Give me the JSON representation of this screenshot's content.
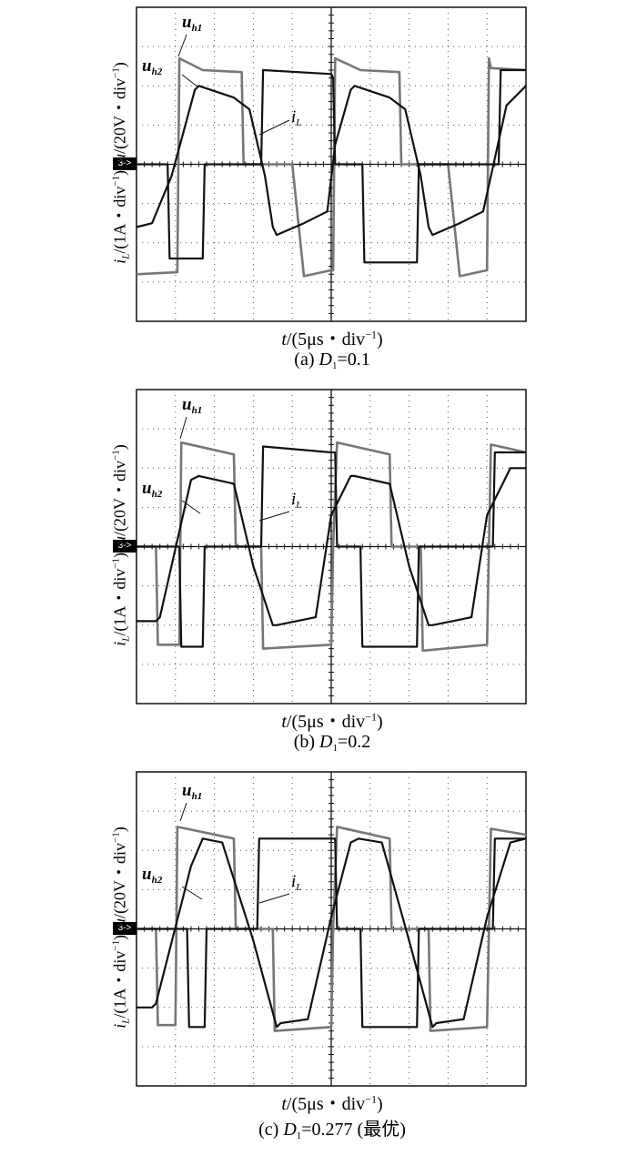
{
  "chart_data": [
    {
      "type": "line",
      "caption_prefix": "(a) ",
      "caption_var": "D",
      "caption_sub": "1",
      "caption_rest": "=0.1",
      "D1": 0.1,
      "xlabel": "t/(5μs・div⁻¹)",
      "ylabel": "iL/(1A・div⁻¹)   u/(20V・div⁻¹)",
      "marker": "3->",
      "series": [
        {
          "name": "uh1",
          "color": "#777777",
          "x": [
            0,
            1.05,
            1.1,
            1.7,
            2.7,
            2.75,
            2.8,
            4.0,
            4.3,
            5.0,
            5.05,
            5.1,
            5.75,
            6.75,
            6.8,
            6.9,
            8.0,
            8.3,
            9.0,
            9.05,
            9.1,
            10
          ],
          "y": [
            -2.8,
            -2.75,
            2.7,
            2.4,
            2.35,
            0,
            0,
            0,
            -2.85,
            -2.7,
            -2.7,
            2.7,
            2.4,
            2.35,
            0,
            0,
            0,
            -2.85,
            -2.7,
            2.7,
            2.45,
            2.4
          ]
        },
        {
          "name": "uh2",
          "color": "#111111",
          "x": [
            0,
            0.8,
            0.85,
            1.7,
            1.75,
            3.2,
            3.25,
            5.0,
            5.05,
            5.1,
            5.8,
            5.85,
            7.2,
            7.25,
            9.0,
            9.3,
            9.35,
            10
          ],
          "y": [
            0,
            0,
            -2.4,
            -2.4,
            0,
            0,
            2.4,
            2.3,
            2.2,
            0,
            0,
            -2.5,
            -2.5,
            0,
            0,
            0,
            2.4,
            2.4
          ]
        },
        {
          "name": "iL",
          "color": "#111111",
          "x": [
            0,
            0.4,
            0.9,
            1.5,
            1.6,
            2.5,
            2.9,
            3.3,
            3.5,
            3.6,
            4.3,
            4.9,
            5.1,
            5.5,
            5.6,
            6.5,
            6.9,
            7.3,
            7.5,
            7.6,
            8.3,
            8.9,
            9.5,
            10
          ],
          "y": [
            -1.6,
            -1.5,
            -0.3,
            1.9,
            2.0,
            1.7,
            1.4,
            -0.3,
            -1.6,
            -1.8,
            -1.5,
            -1.2,
            0.5,
            1.9,
            2.0,
            1.7,
            1.4,
            -0.3,
            -1.6,
            -1.8,
            -1.5,
            -1.2,
            1.5,
            2.0
          ]
        }
      ],
      "label_uh1": "u",
      "label_uh1_sub": "h1",
      "label_uh2": "u",
      "label_uh2_sub": "h2",
      "label_iL": "i",
      "label_iL_sub": "L"
    },
    {
      "type": "line",
      "caption_prefix": "(b) ",
      "caption_var": "D",
      "caption_sub": "1",
      "caption_rest": "=0.2",
      "D1": 0.2,
      "xlabel": "t/(5μs・div⁻¹)",
      "ylabel": "iL/(1A・div⁻¹)   u/(20V・div⁻¹)",
      "marker": "3->",
      "series": [
        {
          "name": "uh1",
          "color": "#777777",
          "x": [
            0,
            0.5,
            0.55,
            1.1,
            1.15,
            2.5,
            2.55,
            3.2,
            3.25,
            5.0,
            5.05,
            5.15,
            6.5,
            6.55,
            7.3,
            7.35,
            9.0,
            9.05,
            9.1,
            10
          ],
          "y": [
            0,
            0,
            -2.5,
            -2.5,
            2.65,
            2.35,
            0,
            0,
            -2.6,
            -2.5,
            0,
            2.65,
            2.35,
            0,
            0,
            -2.65,
            -2.5,
            0,
            2.6,
            2.4
          ]
        },
        {
          "name": "uh2",
          "color": "#111111",
          "x": [
            0,
            1.1,
            1.15,
            1.7,
            1.75,
            3.2,
            3.25,
            5.0,
            5.1,
            5.15,
            5.75,
            5.8,
            7.2,
            7.25,
            9.1,
            9.15,
            9.2,
            10
          ],
          "y": [
            0,
            0,
            -2.55,
            -2.55,
            0,
            0,
            2.55,
            2.4,
            2.4,
            0,
            0,
            -2.55,
            -2.55,
            0,
            0,
            0,
            2.4,
            2.4
          ]
        },
        {
          "name": "iL",
          "color": "#111111",
          "x": [
            0,
            0.5,
            0.6,
            1.4,
            1.6,
            2.5,
            3.0,
            3.5,
            3.6,
            4.6,
            5.0,
            5.5,
            5.6,
            6.5,
            7.0,
            7.5,
            7.6,
            8.6,
            9.0,
            9.6,
            10
          ],
          "y": [
            -1.9,
            -1.9,
            -1.8,
            1.7,
            1.8,
            1.6,
            -0.5,
            -2.0,
            -2.0,
            -1.8,
            0.8,
            1.8,
            1.8,
            1.6,
            -0.5,
            -2.0,
            -2.0,
            -1.8,
            0.8,
            2.0,
            2.0
          ]
        }
      ],
      "label_uh1": "u",
      "label_uh1_sub": "h1",
      "label_uh2": "u",
      "label_uh2_sub": "h2",
      "label_iL": "i",
      "label_iL_sub": "L"
    },
    {
      "type": "line",
      "caption_prefix": "(c) ",
      "caption_var": "D",
      "caption_sub": "1",
      "caption_rest": "=0.277 (最优)",
      "D1": 0.277,
      "xlabel": "t/(5μs・div⁻¹)",
      "ylabel": "iL/(1A・div⁻¹)   u/(20V・div⁻¹)",
      "marker": "3->",
      "series": [
        {
          "name": "uh1",
          "color": "#777777",
          "x": [
            0,
            0.5,
            0.55,
            1.0,
            1.05,
            2.5,
            2.55,
            3.5,
            3.55,
            5.0,
            5.05,
            5.15,
            6.5,
            6.55,
            7.5,
            7.55,
            9.0,
            9.05,
            9.1,
            10
          ],
          "y": [
            0,
            0,
            -2.45,
            -2.45,
            2.6,
            2.3,
            0,
            0,
            -2.6,
            -2.5,
            0,
            2.6,
            2.3,
            0,
            0,
            -2.6,
            -2.5,
            0,
            2.55,
            2.4
          ]
        },
        {
          "name": "uh2",
          "color": "#111111",
          "x": [
            0,
            1.3,
            1.35,
            1.75,
            1.8,
            3.1,
            3.15,
            5.0,
            5.1,
            5.15,
            5.75,
            5.8,
            7.2,
            7.25,
            9.1,
            9.15,
            9.2,
            10
          ],
          "y": [
            0,
            0,
            -2.5,
            -2.5,
            0,
            0,
            2.3,
            2.3,
            2.3,
            0,
            0,
            -2.5,
            -2.5,
            0,
            0,
            0,
            2.3,
            2.3
          ]
        },
        {
          "name": "iL",
          "color": "#111111",
          "x": [
            0,
            0.4,
            0.5,
            1.4,
            1.7,
            2.2,
            3.0,
            3.6,
            3.7,
            4.4,
            5.0,
            5.5,
            5.7,
            6.3,
            7.0,
            7.6,
            7.7,
            8.4,
            9.0,
            9.6,
            10
          ],
          "y": [
            -2.0,
            -2.0,
            -1.9,
            1.6,
            2.3,
            2.2,
            -0.3,
            -2.5,
            -2.4,
            -2.3,
            0.3,
            2.2,
            2.3,
            2.2,
            -0.3,
            -2.5,
            -2.4,
            -2.3,
            0.3,
            2.2,
            2.3
          ]
        }
      ],
      "label_uh1": "u",
      "label_uh1_sub": "h1",
      "label_uh2": "u",
      "label_uh2_sub": "h2",
      "label_iL": "i",
      "label_iL_sub": "L"
    }
  ]
}
